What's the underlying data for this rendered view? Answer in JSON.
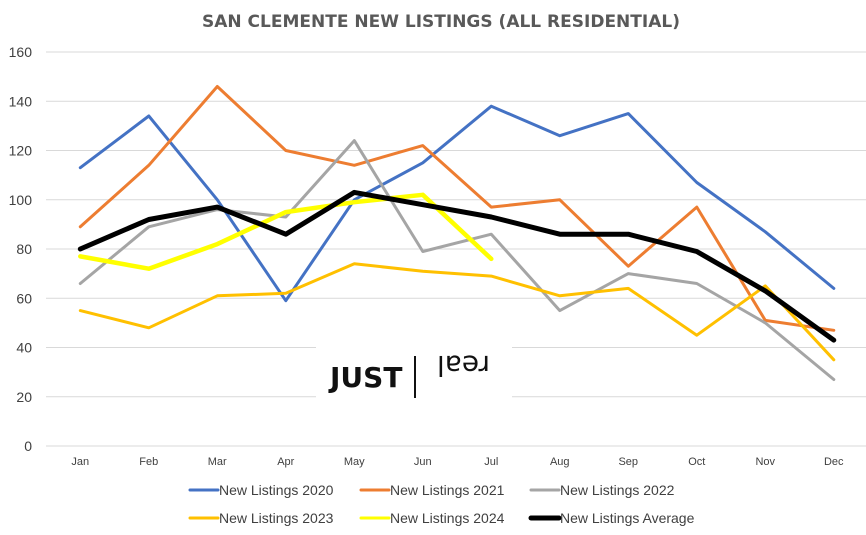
{
  "chart_data": {
    "type": "line",
    "title": "SAN CLEMENTE NEW LISTINGS (ALL RESIDENTIAL)",
    "xlabel": "",
    "ylabel": "",
    "ylim": [
      0,
      160
    ],
    "yticks": [
      "0",
      "20",
      "40",
      "60",
      "80",
      "100",
      "120",
      "140",
      "160"
    ],
    "grid": true,
    "legend_position": "bottom",
    "categories": [
      "Jan",
      "Feb",
      "Mar",
      "Apr",
      "May",
      "Jun",
      "Jul",
      "Aug",
      "Sep",
      "Oct",
      "Nov",
      "Dec"
    ],
    "series": [
      {
        "name": "New Listings 2020",
        "color": "#4472C4",
        "values": [
          113,
          134,
          100,
          59,
          100,
          115,
          138,
          126,
          135,
          107,
          87,
          64
        ]
      },
      {
        "name": "New Listings 2021",
        "color": "#ED7D31",
        "values": [
          89,
          114,
          146,
          120,
          114,
          122,
          97,
          100,
          73,
          97,
          51,
          47
        ]
      },
      {
        "name": "New Listings 2022",
        "color": "#A5A5A5",
        "values": [
          66,
          89,
          96,
          93,
          124,
          79,
          86,
          55,
          70,
          66,
          50,
          27
        ]
      },
      {
        "name": "New Listings 2023",
        "color": "#FFC000",
        "values": [
          55,
          48,
          61,
          62,
          74,
          71,
          69,
          61,
          64,
          45,
          65,
          35
        ]
      },
      {
        "name": "New Listings 2024",
        "color": "#FFFF00",
        "values": [
          77,
          72,
          82,
          95,
          99,
          102,
          76,
          null,
          null,
          null,
          null,
          null
        ]
      },
      {
        "name": "New Listings Average",
        "color": "#000000",
        "values": [
          80,
          92,
          97,
          86,
          103,
          98,
          93,
          86,
          86,
          79,
          63,
          43
        ]
      }
    ]
  },
  "watermark": {
    "word1": "JUST",
    "word2": "real"
  }
}
